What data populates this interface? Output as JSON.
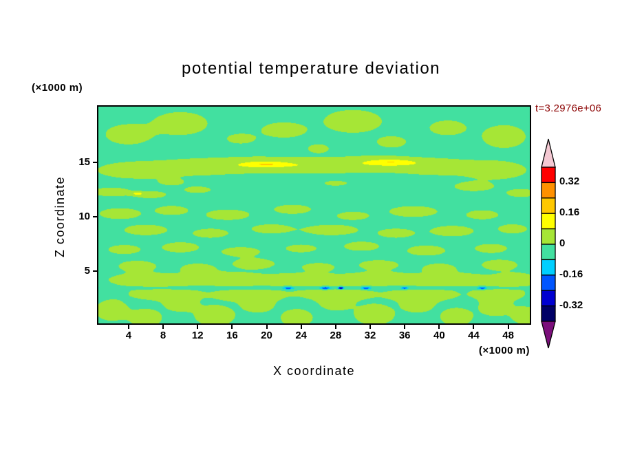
{
  "chart_data": {
    "type": "filled-contour",
    "title": "potential temperature deviation",
    "time_label": "t=3.2976e+06",
    "x_axis_title": "X coordinate",
    "y_axis_title": "Z coordinate",
    "x_units_label": "(×1000 m)",
    "y_units_label": "(×1000 m)",
    "xlim": [
      0.5,
      50.5
    ],
    "zlim": [
      0.2,
      20.15
    ],
    "xticks": [
      4,
      8,
      12,
      16,
      20,
      24,
      28,
      32,
      36,
      40,
      44,
      48
    ],
    "zticks": [
      5,
      10,
      15
    ],
    "levels": [
      -0.4,
      -0.32,
      -0.24,
      -0.16,
      -0.08,
      0,
      0.08,
      0.16,
      0.24,
      0.32,
      0.4
    ],
    "band_colors_low_to_high": [
      "#000066",
      "#0000d0",
      "#0055ff",
      "#00cfff",
      "#42e0a0",
      "#a6e636",
      "#ffff00",
      "#ffc800",
      "#ff9000",
      "#ff0000"
    ],
    "under_arrow_color": "#7b0f7b",
    "over_arrow_color": "#f4c8d2",
    "colorbar_tick_labels": [
      "0.32",
      "0.16",
      "0",
      "-0.16",
      "-0.32"
    ],
    "field": {
      "background": -0.03,
      "blobs": [
        [
          4,
          17.6,
          2.6,
          0.9,
          0.085
        ],
        [
          10,
          18.6,
          3,
          1,
          0.09
        ],
        [
          17,
          17.2,
          1.8,
          0.5,
          0.065
        ],
        [
          22,
          18,
          2.6,
          0.7,
          0.08
        ],
        [
          30,
          18.8,
          3.2,
          1,
          0.09
        ],
        [
          34.5,
          16.9,
          1.8,
          0.55,
          0.07
        ],
        [
          41,
          18.2,
          2.2,
          0.7,
          0.075
        ],
        [
          47.5,
          17.4,
          2.4,
          1,
          0.09
        ],
        [
          26,
          16.3,
          1.4,
          0.45,
          0.06
        ],
        [
          5,
          14.3,
          4.5,
          0.75,
          0.085
        ],
        [
          12,
          14.6,
          4.5,
          0.7,
          0.085
        ],
        [
          19,
          14.8,
          5,
          0.7,
          0.09
        ],
        [
          26,
          14.7,
          4.5,
          0.65,
          0.085
        ],
        [
          33,
          14.9,
          5,
          0.7,
          0.09
        ],
        [
          40,
          14.6,
          4.5,
          0.7,
          0.085
        ],
        [
          46.5,
          14.3,
          3.5,
          0.8,
          0.085
        ],
        [
          20,
          14.85,
          2.2,
          0.22,
          0.1
        ],
        [
          34.5,
          15.05,
          2.4,
          0.22,
          0.1
        ],
        [
          9,
          13.2,
          1.6,
          0.35,
          0.055
        ],
        [
          28,
          13.1,
          1.8,
          0.3,
          0.05
        ],
        [
          2,
          12.3,
          2.2,
          0.4,
          0.08
        ],
        [
          6.5,
          12.05,
          2,
          0.35,
          0.07
        ],
        [
          12,
          12.5,
          1.8,
          0.35,
          0.06
        ],
        [
          44,
          12.8,
          2.4,
          0.45,
          0.07
        ],
        [
          49.5,
          12.2,
          1.8,
          0.4,
          0.07
        ],
        [
          5,
          12.15,
          0.7,
          0.14,
          0.1
        ],
        [
          3,
          10.3,
          2.4,
          0.5,
          0.08
        ],
        [
          9,
          10.6,
          2,
          0.45,
          0.07
        ],
        [
          15.5,
          10.2,
          2.6,
          0.5,
          0.075
        ],
        [
          23,
          10.7,
          2.3,
          0.45,
          0.07
        ],
        [
          30,
          10.1,
          2,
          0.4,
          0.07
        ],
        [
          37,
          10.5,
          2.8,
          0.5,
          0.08
        ],
        [
          45,
          10.2,
          2,
          0.45,
          0.07
        ],
        [
          6,
          8.8,
          2.6,
          0.5,
          0.075
        ],
        [
          13.5,
          8.5,
          2.2,
          0.45,
          0.07
        ],
        [
          20.5,
          8.9,
          2.4,
          0.45,
          0.07
        ],
        [
          27.5,
          8.8,
          3.2,
          0.5,
          0.075
        ],
        [
          35,
          8.5,
          2.2,
          0.45,
          0.07
        ],
        [
          41.5,
          8.7,
          2.6,
          0.5,
          0.075
        ],
        [
          48.5,
          8.9,
          1.8,
          0.45,
          0.07
        ],
        [
          3.5,
          7,
          2,
          0.45,
          0.07
        ],
        [
          10,
          7.2,
          2.3,
          0.5,
          0.07
        ],
        [
          17,
          6.8,
          2.4,
          0.45,
          0.07
        ],
        [
          24,
          7.1,
          2,
          0.4,
          0.065
        ],
        [
          31,
          7.3,
          2.2,
          0.45,
          0.07
        ],
        [
          38.5,
          6.9,
          2.4,
          0.5,
          0.07
        ],
        [
          46,
          7.1,
          2,
          0.45,
          0.07
        ],
        [
          5,
          5.5,
          2.3,
          0.5,
          0.07
        ],
        [
          12,
          5.3,
          2,
          0.45,
          0.065
        ],
        [
          18.5,
          5.7,
          2.6,
          0.5,
          0.07
        ],
        [
          26,
          5.4,
          2,
          0.4,
          0.065
        ],
        [
          33,
          5.6,
          2.4,
          0.45,
          0.07
        ],
        [
          40,
          5.3,
          2,
          0.45,
          0.065
        ],
        [
          47,
          5.6,
          2.2,
          0.5,
          0.07
        ],
        [
          6,
          4.2,
          4.5,
          0.65,
          0.075
        ],
        [
          15,
          4.3,
          4.5,
          0.65,
          0.075
        ],
        [
          24,
          4.2,
          4.5,
          0.65,
          0.075
        ],
        [
          33,
          4.3,
          4.5,
          0.65,
          0.075
        ],
        [
          42,
          4.2,
          4.5,
          0.65,
          0.075
        ],
        [
          49,
          4.2,
          2.5,
          0.65,
          0.075
        ],
        [
          25,
          3.45,
          100,
          0.12,
          -0.06
        ],
        [
          22.5,
          3.45,
          0.5,
          0.13,
          -0.16
        ],
        [
          26.8,
          3.45,
          0.55,
          0.13,
          -0.19
        ],
        [
          28.6,
          3.45,
          0.3,
          0.11,
          -0.3
        ],
        [
          31.5,
          3.45,
          0.45,
          0.12,
          -0.17
        ],
        [
          36,
          3.45,
          0.35,
          0.11,
          -0.15
        ],
        [
          45,
          3.45,
          0.45,
          0.12,
          -0.17
        ],
        [
          8,
          2.9,
          4,
          0.6,
          0.075
        ],
        [
          18,
          2.8,
          4,
          0.6,
          0.075
        ],
        [
          28,
          2.9,
          4,
          0.6,
          0.075
        ],
        [
          38,
          2.8,
          4,
          0.6,
          0.075
        ],
        [
          47,
          2.9,
          3,
          0.6,
          0.075
        ],
        [
          2,
          1.4,
          1.8,
          0.9,
          0.09
        ],
        [
          6,
          0.7,
          1.8,
          0.8,
          0.085
        ],
        [
          10,
          2,
          1.8,
          0.7,
          0.08
        ],
        [
          14,
          0.9,
          2.2,
          0.9,
          0.09
        ],
        [
          19,
          1.9,
          1.8,
          0.7,
          0.08
        ],
        [
          23.5,
          0.7,
          1.8,
          0.8,
          0.085
        ],
        [
          28,
          2.1,
          1.8,
          0.7,
          0.08
        ],
        [
          32.5,
          1,
          2.2,
          0.9,
          0.09
        ],
        [
          37.5,
          1.9,
          1.8,
          0.7,
          0.08
        ],
        [
          42,
          0.8,
          1.8,
          0.8,
          0.085
        ],
        [
          46.5,
          1.7,
          1.8,
          0.8,
          0.085
        ],
        [
          50,
          0.9,
          1.5,
          0.8,
          0.085
        ]
      ]
    }
  }
}
